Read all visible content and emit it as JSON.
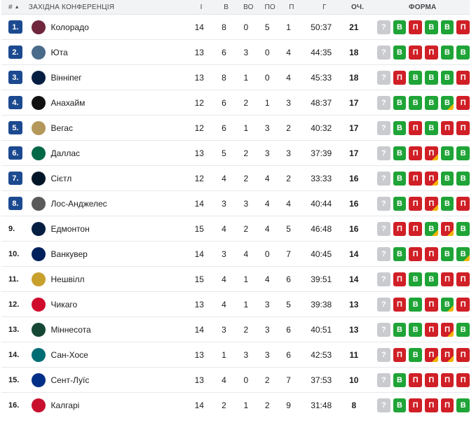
{
  "header": {
    "rank": "#",
    "team": "Західна конференція",
    "gp": "І",
    "w": "В",
    "otw": "ВО",
    "otl": "ПО",
    "l": "П",
    "goals": "Г",
    "pts": "Оч.",
    "form": "Форма"
  },
  "form_labels": {
    "upcoming": "?",
    "W": "В",
    "L": "П"
  },
  "colors": {
    "qualified": "#1c4a90",
    "win": "#1fa437",
    "loss": "#d01f26",
    "overtime_marker": "#f4b400",
    "upcoming": "#c9cbcf"
  },
  "rows": [
    {
      "rank": "1.",
      "qualified": true,
      "logo": "avalanche-logo",
      "logo_color": "#6f263d",
      "team": "Колорадо",
      "gp": "14",
      "w": "8",
      "otw": "0",
      "otl": "5",
      "l": "1",
      "goals": "50:37",
      "pts": "21",
      "form": [
        [
          "W",
          0
        ],
        [
          "L",
          0
        ],
        [
          "W",
          0
        ],
        [
          "W",
          0
        ],
        [
          "L",
          0
        ]
      ]
    },
    {
      "rank": "2.",
      "qualified": true,
      "logo": "utah-logo",
      "logo_color": "#4a6b8a",
      "team": "Юта",
      "gp": "13",
      "w": "6",
      "otw": "3",
      "otl": "0",
      "l": "4",
      "goals": "44:35",
      "pts": "18",
      "form": [
        [
          "W",
          0
        ],
        [
          "L",
          0
        ],
        [
          "L",
          0
        ],
        [
          "W",
          0
        ],
        [
          "W",
          0
        ]
      ]
    },
    {
      "rank": "3.",
      "qualified": true,
      "logo": "jets-logo",
      "logo_color": "#041e42",
      "team": "Вінніпег",
      "gp": "13",
      "w": "8",
      "otw": "1",
      "otl": "0",
      "l": "4",
      "goals": "45:33",
      "pts": "18",
      "form": [
        [
          "L",
          0
        ],
        [
          "W",
          0
        ],
        [
          "W",
          0
        ],
        [
          "W",
          0
        ],
        [
          "L",
          0
        ]
      ]
    },
    {
      "rank": "4.",
      "qualified": true,
      "logo": "ducks-logo",
      "logo_color": "#111111",
      "team": "Анахайм",
      "gp": "12",
      "w": "6",
      "otw": "2",
      "otl": "1",
      "l": "3",
      "goals": "48:37",
      "pts": "17",
      "form": [
        [
          "W",
          0
        ],
        [
          "W",
          0
        ],
        [
          "W",
          0
        ],
        [
          "W",
          1
        ],
        [
          "L",
          0
        ]
      ]
    },
    {
      "rank": "5.",
      "qualified": true,
      "logo": "golden-knights-logo",
      "logo_color": "#b4975a",
      "team": "Вегас",
      "gp": "12",
      "w": "6",
      "otw": "1",
      "otl": "3",
      "l": "2",
      "goals": "40:32",
      "pts": "17",
      "form": [
        [
          "W",
          0
        ],
        [
          "L",
          0
        ],
        [
          "W",
          0
        ],
        [
          "L",
          0
        ],
        [
          "L",
          0
        ]
      ]
    },
    {
      "rank": "6.",
      "qualified": true,
      "logo": "stars-logo",
      "logo_color": "#006847",
      "team": "Даллас",
      "gp": "13",
      "w": "5",
      "otw": "2",
      "otl": "3",
      "l": "3",
      "goals": "37:39",
      "pts": "17",
      "form": [
        [
          "W",
          0
        ],
        [
          "L",
          0
        ],
        [
          "L",
          1
        ],
        [
          "W",
          0
        ],
        [
          "W",
          0
        ]
      ]
    },
    {
      "rank": "7.",
      "qualified": true,
      "logo": "kraken-logo",
      "logo_color": "#001628",
      "team": "Сієтл",
      "gp": "12",
      "w": "4",
      "otw": "2",
      "otl": "4",
      "l": "2",
      "goals": "33:33",
      "pts": "16",
      "form": [
        [
          "W",
          0
        ],
        [
          "L",
          0
        ],
        [
          "L",
          1
        ],
        [
          "W",
          0
        ],
        [
          "W",
          0
        ]
      ]
    },
    {
      "rank": "8.",
      "qualified": true,
      "logo": "kings-logo",
      "logo_color": "#5a5a5a",
      "team": "Лос-Анджелес",
      "gp": "14",
      "w": "3",
      "otw": "3",
      "otl": "4",
      "l": "4",
      "goals": "40:44",
      "pts": "16",
      "form": [
        [
          "W",
          0
        ],
        [
          "L",
          0
        ],
        [
          "L",
          1
        ],
        [
          "W",
          0
        ],
        [
          "L",
          0
        ]
      ]
    },
    {
      "rank": "9.",
      "qualified": false,
      "logo": "oilers-logo",
      "logo_color": "#041e42",
      "team": "Едмонтон",
      "gp": "15",
      "w": "4",
      "otw": "2",
      "otl": "4",
      "l": "5",
      "goals": "46:48",
      "pts": "16",
      "form": [
        [
          "L",
          0
        ],
        [
          "L",
          0
        ],
        [
          "W",
          1
        ],
        [
          "L",
          1
        ],
        [
          "W",
          0
        ]
      ]
    },
    {
      "rank": "10.",
      "qualified": false,
      "logo": "canucks-logo",
      "logo_color": "#00205b",
      "team": "Ванкувер",
      "gp": "14",
      "w": "3",
      "otw": "4",
      "otl": "0",
      "l": "7",
      "goals": "40:45",
      "pts": "14",
      "form": [
        [
          "W",
          0
        ],
        [
          "L",
          0
        ],
        [
          "L",
          0
        ],
        [
          "W",
          0
        ],
        [
          "W",
          1
        ]
      ]
    },
    {
      "rank": "11.",
      "qualified": false,
      "logo": "predators-logo",
      "logo_color": "#c8a02c",
      "team": "Нешвілл",
      "gp": "15",
      "w": "4",
      "otw": "1",
      "otl": "4",
      "l": "6",
      "goals": "39:51",
      "pts": "14",
      "form": [
        [
          "L",
          0
        ],
        [
          "W",
          0
        ],
        [
          "W",
          0
        ],
        [
          "L",
          0
        ],
        [
          "L",
          0
        ]
      ]
    },
    {
      "rank": "12.",
      "qualified": false,
      "logo": "blackhawks-logo",
      "logo_color": "#cf0a2c",
      "team": "Чикаго",
      "gp": "13",
      "w": "4",
      "otw": "1",
      "otl": "3",
      "l": "5",
      "goals": "39:38",
      "pts": "13",
      "form": [
        [
          "L",
          0
        ],
        [
          "W",
          0
        ],
        [
          "L",
          0
        ],
        [
          "W",
          1
        ],
        [
          "L",
          0
        ]
      ]
    },
    {
      "rank": "13.",
      "qualified": false,
      "logo": "wild-logo",
      "logo_color": "#154734",
      "team": "Міннесота",
      "gp": "14",
      "w": "3",
      "otw": "2",
      "otl": "3",
      "l": "6",
      "goals": "40:51",
      "pts": "13",
      "form": [
        [
          "W",
          0
        ],
        [
          "W",
          0
        ],
        [
          "L",
          0
        ],
        [
          "L",
          1
        ],
        [
          "W",
          0
        ]
      ]
    },
    {
      "rank": "14.",
      "qualified": false,
      "logo": "sharks-logo",
      "logo_color": "#006d75",
      "team": "Сан-Хосе",
      "gp": "13",
      "w": "1",
      "otw": "3",
      "otl": "3",
      "l": "6",
      "goals": "42:53",
      "pts": "11",
      "form": [
        [
          "L",
          0
        ],
        [
          "W",
          0
        ],
        [
          "L",
          1
        ],
        [
          "L",
          1
        ],
        [
          "L",
          0
        ]
      ]
    },
    {
      "rank": "15.",
      "qualified": false,
      "logo": "blues-logo",
      "logo_color": "#002f87",
      "team": "Сент-Луїс",
      "gp": "13",
      "w": "4",
      "otw": "0",
      "otl": "2",
      "l": "7",
      "goals": "37:53",
      "pts": "10",
      "form": [
        [
          "W",
          0
        ],
        [
          "L",
          0
        ],
        [
          "L",
          0
        ],
        [
          "L",
          0
        ],
        [
          "L",
          0
        ]
      ]
    },
    {
      "rank": "16.",
      "qualified": false,
      "logo": "flames-logo",
      "logo_color": "#c8102e",
      "team": "Калгарі",
      "gp": "14",
      "w": "2",
      "otw": "1",
      "otl": "2",
      "l": "9",
      "goals": "31:48",
      "pts": "8",
      "form": [
        [
          "W",
          0
        ],
        [
          "L",
          0
        ],
        [
          "L",
          0
        ],
        [
          "L",
          0
        ],
        [
          "W",
          0
        ]
      ]
    }
  ]
}
